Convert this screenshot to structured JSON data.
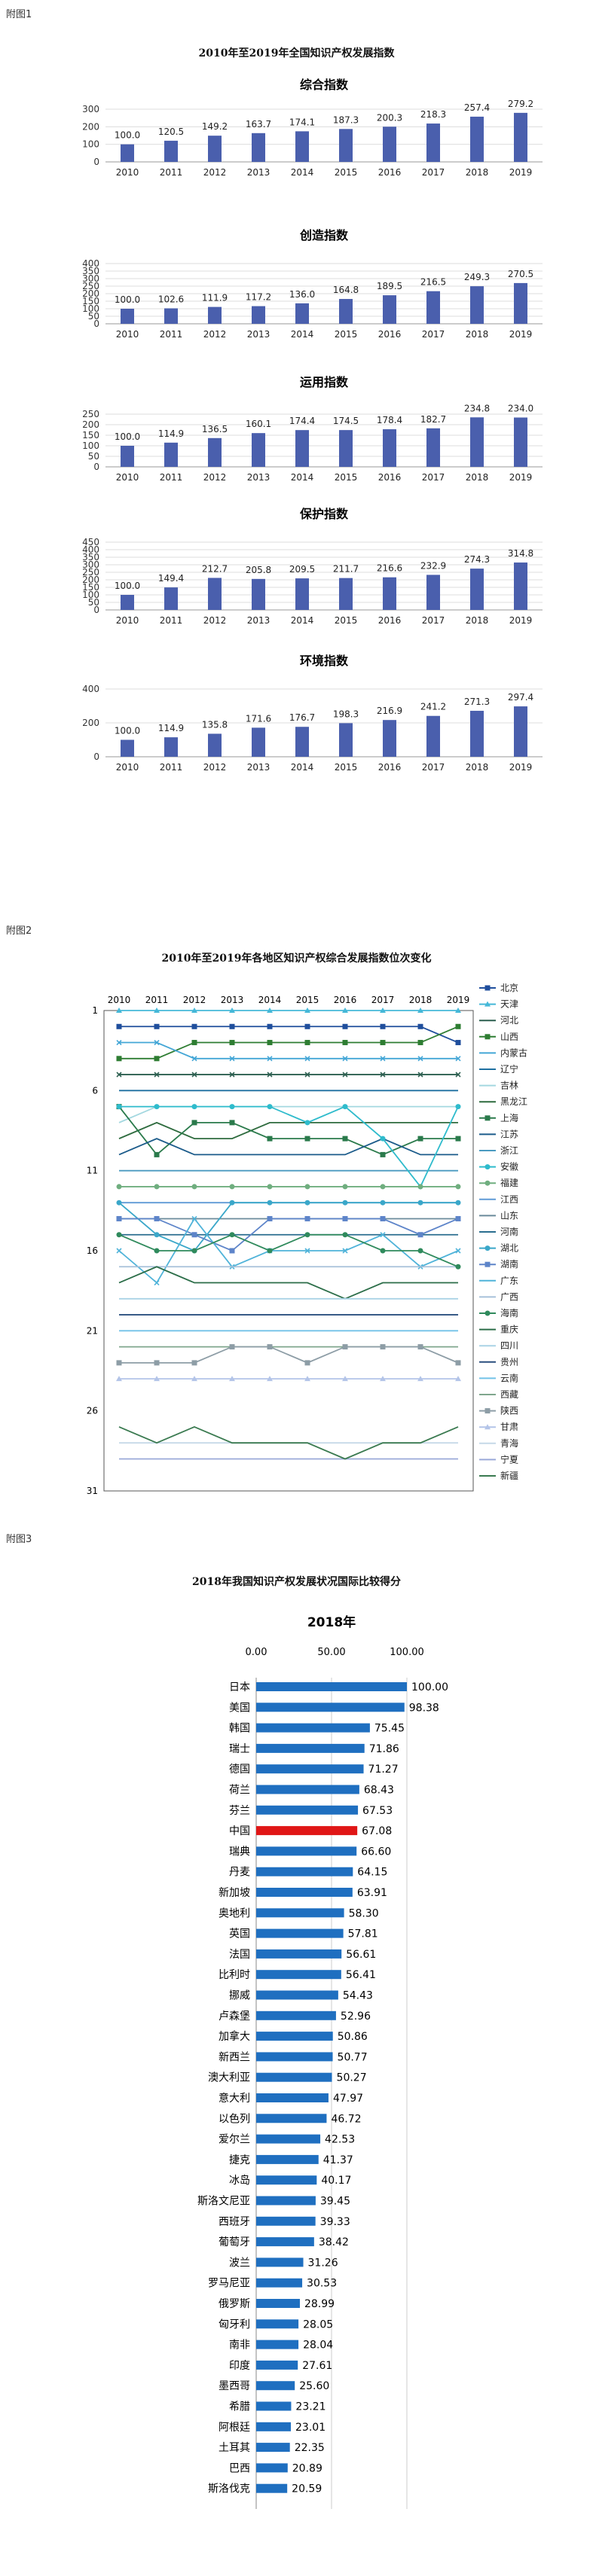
{
  "labels": {
    "fig1": "附图1",
    "fig2": "附图2",
    "fig3": "附图3"
  },
  "fig1": {
    "title": "2010年至2019年全国知识产权发展指数",
    "color": "#4a5fad",
    "years": [
      "2010",
      "2011",
      "2012",
      "2013",
      "2014",
      "2015",
      "2016",
      "2017",
      "2018",
      "2019"
    ],
    "charts": [
      {
        "title": "综合指数",
        "ylim": [
          0,
          300
        ],
        "ticks": [
          0,
          100,
          200,
          300
        ],
        "values": [
          100.0,
          120.5,
          149.2,
          163.7,
          174.1,
          187.3,
          200.3,
          218.3,
          257.4,
          279.2
        ]
      },
      {
        "title": "创造指数",
        "ylim": [
          0,
          400
        ],
        "ticks": [
          0,
          50,
          100,
          150,
          200,
          250,
          300,
          350,
          400
        ],
        "values": [
          100.0,
          102.6,
          111.9,
          117.2,
          136.0,
          164.8,
          189.5,
          216.5,
          249.3,
          270.5
        ]
      },
      {
        "title": "运用指数",
        "ylim": [
          0,
          250
        ],
        "ticks": [
          0,
          50,
          100,
          150,
          200,
          250
        ],
        "values": [
          100.0,
          114.9,
          136.5,
          160.1,
          174.4,
          174.5,
          178.4,
          182.7,
          234.8,
          234.0
        ]
      },
      {
        "title": "保护指数",
        "ylim": [
          0,
          450
        ],
        "ticks": [
          0,
          50,
          100,
          150,
          200,
          250,
          300,
          350,
          400,
          450
        ],
        "values": [
          100.0,
          149.4,
          212.7,
          205.8,
          209.5,
          211.7,
          216.6,
          232.9,
          274.3,
          314.8
        ]
      },
      {
        "title": "环境指数",
        "ylim": [
          0,
          400
        ],
        "ticks": [
          0,
          200,
          400
        ],
        "values": [
          100.0,
          114.9,
          135.8,
          171.6,
          176.7,
          198.3,
          216.9,
          241.2,
          271.3,
          297.4
        ]
      }
    ]
  },
  "fig2": {
    "title": "2010年至2019年各地区知识产权综合发展指数位次变化",
    "years": [
      "2010",
      "2011",
      "2012",
      "2013",
      "2014",
      "2015",
      "2016",
      "2017",
      "2018",
      "2019"
    ],
    "yticks": [
      1,
      6,
      11,
      16,
      21,
      26,
      31
    ],
    "series": [
      {
        "name": "北京",
        "color": "#1f4e9c",
        "marker": "square",
        "ranks": [
          2,
          2,
          2,
          2,
          2,
          2,
          2,
          2,
          2,
          3
        ]
      },
      {
        "name": "天津",
        "color": "#45b8d8",
        "marker": "triangle",
        "ranks": [
          1,
          1,
          1,
          1,
          1,
          1,
          1,
          1,
          1,
          1
        ]
      },
      {
        "name": "河北",
        "color": "#2b5e4f",
        "marker": "x",
        "ranks": [
          5,
          5,
          5,
          5,
          5,
          5,
          5,
          5,
          5,
          5
        ]
      },
      {
        "name": "山西",
        "color": "#2e7d32",
        "marker": "square",
        "ranks": [
          4,
          4,
          3,
          3,
          3,
          3,
          3,
          3,
          3,
          2
        ]
      },
      {
        "name": "内蒙古",
        "color": "#43a6d6",
        "marker": "x",
        "ranks": [
          3,
          3,
          4,
          4,
          4,
          4,
          4,
          4,
          4,
          4
        ]
      },
      {
        "name": "辽宁",
        "color": "#1e6fa0",
        "marker": "line",
        "ranks": [
          6,
          6,
          6,
          6,
          6,
          6,
          6,
          6,
          6,
          6
        ]
      },
      {
        "name": "吉林",
        "color": "#a4d8e0",
        "marker": "line",
        "ranks": [
          8,
          7,
          7,
          7,
          7,
          7,
          7,
          7,
          7,
          7
        ]
      },
      {
        "name": "黑龙江",
        "color": "#2e6b3e",
        "marker": "line",
        "ranks": [
          9,
          8,
          9,
          9,
          8,
          8,
          8,
          8,
          8,
          8
        ]
      },
      {
        "name": "上海",
        "color": "#2a7a4b",
        "marker": "square",
        "ranks": [
          7,
          10,
          8,
          8,
          9,
          9,
          9,
          10,
          9,
          9
        ]
      },
      {
        "name": "江苏",
        "color": "#1b5b8a",
        "marker": "line",
        "ranks": [
          10,
          9,
          10,
          10,
          10,
          10,
          10,
          9,
          10,
          10
        ]
      },
      {
        "name": "浙江",
        "color": "#4a9ac0",
        "marker": "line",
        "ranks": [
          11,
          11,
          11,
          11,
          11,
          11,
          11,
          11,
          11,
          11
        ]
      },
      {
        "name": "安徽",
        "color": "#2ebbcc",
        "marker": "circle",
        "ranks": [
          7,
          7,
          7,
          7,
          7,
          8,
          7,
          9,
          12,
          7
        ]
      },
      {
        "name": "福建",
        "color": "#6fae7f",
        "marker": "circle",
        "ranks": [
          12,
          12,
          12,
          12,
          12,
          12,
          12,
          12,
          12,
          12
        ]
      },
      {
        "name": "江西",
        "color": "#5f9ad6",
        "marker": "line",
        "ranks": [
          13,
          13,
          13,
          13,
          13,
          13,
          13,
          13,
          13,
          13
        ]
      },
      {
        "name": "山东",
        "color": "#6a8a9a",
        "marker": "line",
        "ranks": [
          14,
          14,
          14,
          14,
          14,
          14,
          14,
          14,
          14,
          14
        ]
      },
      {
        "name": "河南",
        "color": "#2a6e8f",
        "marker": "line",
        "ranks": [
          15,
          15,
          15,
          15,
          15,
          15,
          15,
          15,
          15,
          15
        ]
      },
      {
        "name": "湖北",
        "color": "#3aa7c9",
        "marker": "circle",
        "ranks": [
          13,
          15,
          16,
          13,
          13,
          13,
          13,
          13,
          13,
          13
        ]
      },
      {
        "name": "湖南",
        "color": "#5d84c9",
        "marker": "square",
        "ranks": [
          14,
          14,
          15,
          16,
          14,
          14,
          14,
          14,
          15,
          14
        ]
      },
      {
        "name": "广东",
        "color": "#4fb3d9",
        "marker": "x",
        "ranks": [
          16,
          18,
          14,
          17,
          16,
          16,
          16,
          15,
          17,
          16
        ]
      },
      {
        "name": "广西",
        "color": "#a7c1d9",
        "marker": "line",
        "ranks": [
          17,
          17,
          17,
          17,
          17,
          17,
          17,
          17,
          17,
          17
        ]
      },
      {
        "name": "海南",
        "color": "#2f8a5c",
        "marker": "circle",
        "ranks": [
          15,
          16,
          16,
          15,
          16,
          15,
          15,
          16,
          16,
          17
        ]
      },
      {
        "name": "重庆",
        "color": "#2b6d48",
        "marker": "line",
        "ranks": [
          18,
          17,
          18,
          18,
          18,
          18,
          19,
          18,
          18,
          18
        ]
      },
      {
        "name": "四川",
        "color": "#aad3e6",
        "marker": "line",
        "ranks": [
          19,
          19,
          19,
          19,
          19,
          19,
          19,
          19,
          19,
          19
        ]
      },
      {
        "name": "贵州",
        "color": "#2a4f7e",
        "marker": "line",
        "ranks": [
          20,
          20,
          20,
          20,
          20,
          20,
          20,
          20,
          20,
          20
        ]
      },
      {
        "name": "云南",
        "color": "#72c2e8",
        "marker": "line",
        "ranks": [
          21,
          21,
          21,
          21,
          21,
          21,
          21,
          21,
          21,
          21
        ]
      },
      {
        "name": "西藏",
        "color": "#7fa68d",
        "marker": "line",
        "ranks": [
          22,
          22,
          22,
          22,
          22,
          22,
          22,
          22,
          22,
          22
        ]
      },
      {
        "name": "陕西",
        "color": "#8d9da6",
        "marker": "square",
        "ranks": [
          23,
          23,
          23,
          22,
          22,
          23,
          22,
          22,
          22,
          23
        ]
      },
      {
        "name": "甘肃",
        "color": "#b3c4e8",
        "marker": "triangle",
        "ranks": [
          24,
          24,
          24,
          24,
          24,
          24,
          24,
          24,
          24,
          24
        ]
      },
      {
        "name": "青海",
        "color": "#c6d9e8",
        "marker": "line",
        "ranks": [
          28,
          28,
          28,
          28,
          28,
          28,
          28,
          28,
          28,
          28
        ]
      },
      {
        "name": "宁夏",
        "color": "#9aa9d9",
        "marker": "line",
        "ranks": [
          29,
          29,
          29,
          29,
          29,
          29,
          29,
          29,
          29,
          29
        ]
      },
      {
        "name": "新疆",
        "color": "#3a7a50",
        "marker": "line",
        "ranks": [
          27,
          28,
          27,
          28,
          28,
          28,
          29,
          28,
          28,
          27
        ]
      }
    ]
  },
  "fig3": {
    "title": "2018年我国知识产权发展状况国际比较得分",
    "subtitle": "2018年",
    "xlim": [
      0,
      100
    ],
    "xticks": [
      "0.00",
      "50.00",
      "100.00"
    ],
    "bar_color": "#1f6fc0",
    "highlight_color": "#e01616",
    "highlight": "中国",
    "categories": [
      "日本",
      "美国",
      "韩国",
      "瑞士",
      "德国",
      "荷兰",
      "芬兰",
      "中国",
      "瑞典",
      "丹麦",
      "新加坡",
      "奥地利",
      "英国",
      "法国",
      "比利时",
      "挪威",
      "卢森堡",
      "加拿大",
      "新西兰",
      "澳大利亚",
      "意大利",
      "以色列",
      "爱尔兰",
      "捷克",
      "冰岛",
      "斯洛文尼亚",
      "西班牙",
      "葡萄牙",
      "波兰",
      "罗马尼亚",
      "俄罗斯",
      "匈牙利",
      "南非",
      "印度",
      "墨西哥",
      "希腊",
      "阿根廷",
      "土耳其",
      "巴西",
      "斯洛伐克"
    ],
    "values": [
      100.0,
      98.38,
      75.45,
      71.86,
      71.27,
      68.43,
      67.53,
      67.08,
      66.6,
      64.15,
      63.91,
      58.3,
      57.81,
      56.61,
      56.41,
      54.43,
      52.96,
      50.86,
      50.77,
      50.27,
      47.97,
      46.72,
      42.53,
      41.37,
      40.17,
      39.45,
      39.33,
      38.42,
      31.26,
      30.53,
      28.99,
      28.05,
      28.04,
      27.61,
      25.6,
      23.21,
      23.01,
      22.35,
      20.89,
      20.59
    ]
  }
}
